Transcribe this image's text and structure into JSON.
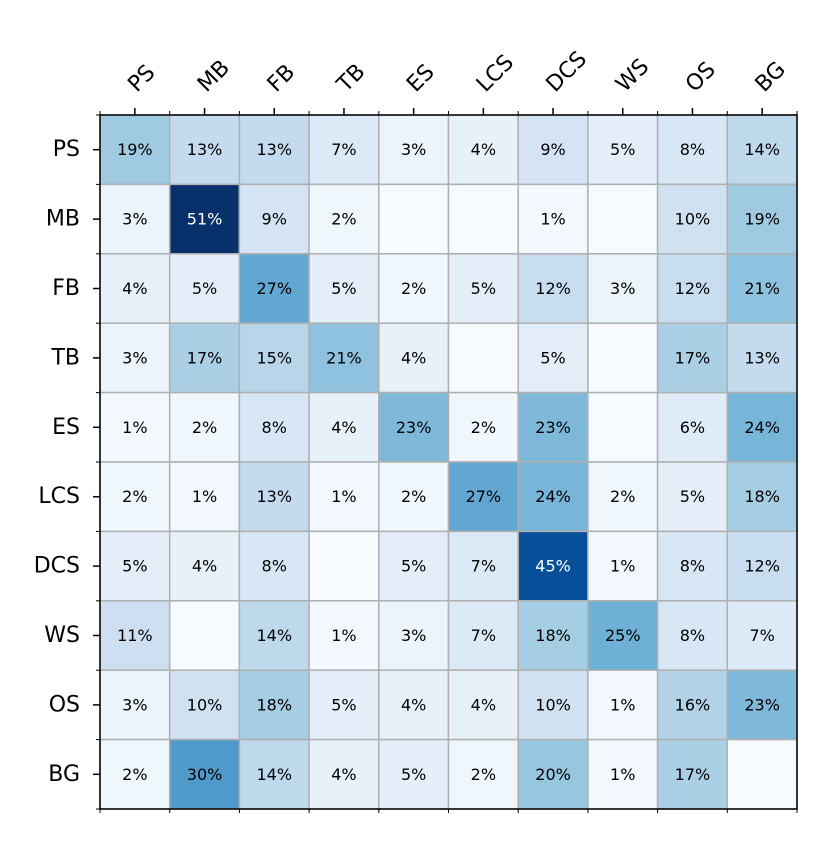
{
  "chart_data": {
    "type": "heatmap",
    "title": "",
    "xlabel": "",
    "ylabel": "",
    "x_categories": [
      "PS",
      "MB",
      "FB",
      "TB",
      "ES",
      "LCS",
      "DCS",
      "WS",
      "OS",
      "BG"
    ],
    "y_categories": [
      "PS",
      "MB",
      "FB",
      "TB",
      "ES",
      "LCS",
      "DCS",
      "WS",
      "OS",
      "BG"
    ],
    "values": [
      [
        19,
        13,
        13,
        7,
        3,
        4,
        9,
        5,
        8,
        14
      ],
      [
        3,
        51,
        9,
        2,
        0,
        0,
        1,
        0,
        10,
        19
      ],
      [
        4,
        5,
        27,
        5,
        2,
        5,
        12,
        3,
        12,
        21
      ],
      [
        3,
        17,
        15,
        21,
        4,
        0,
        5,
        0,
        17,
        13
      ],
      [
        1,
        2,
        8,
        4,
        23,
        2,
        23,
        0,
        6,
        24
      ],
      [
        2,
        1,
        13,
        1,
        2,
        27,
        24,
        2,
        5,
        18
      ],
      [
        5,
        4,
        8,
        0,
        5,
        7,
        45,
        1,
        8,
        12
      ],
      [
        11,
        0,
        14,
        1,
        3,
        7,
        18,
        25,
        8,
        7
      ],
      [
        3,
        10,
        18,
        5,
        4,
        4,
        10,
        1,
        16,
        23
      ],
      [
        2,
        30,
        14,
        4,
        5,
        2,
        20,
        1,
        17,
        0
      ]
    ],
    "value_suffix": "%",
    "hide_zero_labels": true,
    "colormap": "Blues",
    "grid_color": "#b0b0b0",
    "vmin": 0,
    "vmax": 51,
    "x_axis_position": "top"
  }
}
